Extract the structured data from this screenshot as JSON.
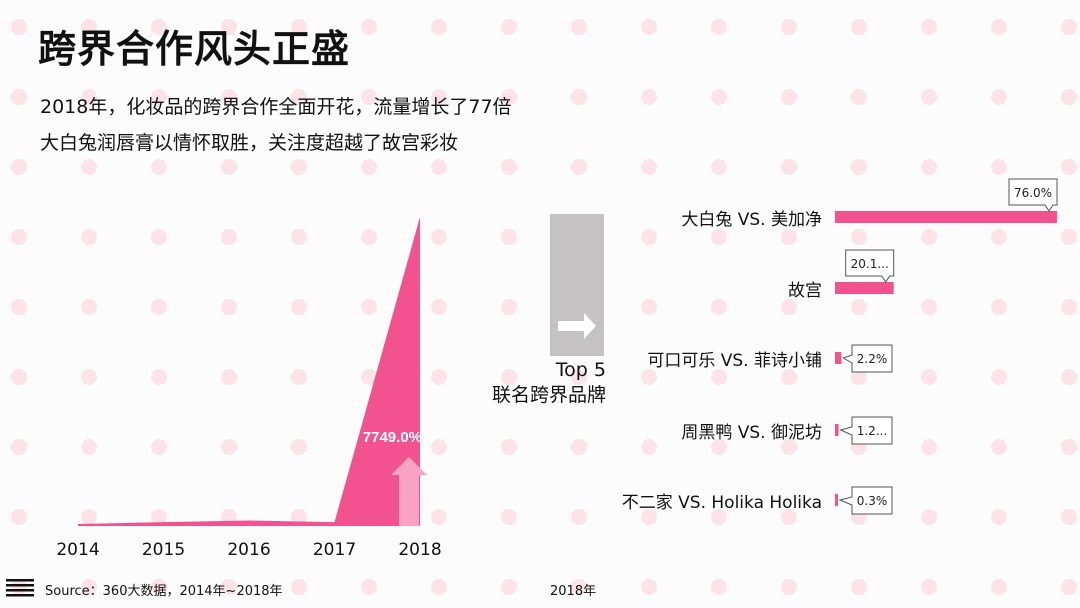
{
  "title": "跨界合作风头正盛",
  "subtitle_lines": [
    "2018年，化妆品的跨界合作全面开花，流量增长了77倍",
    "大白兔润唇膏以情怀取胜，关注度超越了故宫彩妆"
  ],
  "side_label": {
    "line1": "Top 5",
    "line2": "联名跨界品牌"
  },
  "footer": {
    "source": "Source：360大数据，2014年~2018年",
    "year": "2018年"
  },
  "colors": {
    "accent": "#f2538f",
    "arrow": "#f9a3c2",
    "dots": "#fbe3e8",
    "box": "#c4c2c3"
  },
  "icons": {
    "menu": "hamburger-icon",
    "arrow": "arrow-right-icon",
    "growth": "arrow-up-icon"
  },
  "chart_data": [
    {
      "type": "area",
      "categories": [
        "2014",
        "2015",
        "2016",
        "2017",
        "2018"
      ],
      "values": [
        0.5,
        1,
        1.4,
        1,
        79
      ],
      "annotation": "7749.0%",
      "ylim": [
        0,
        80
      ],
      "grid": false
    },
    {
      "type": "bar",
      "orientation": "horizontal",
      "categories": [
        "大白兔 VS. 美加净",
        "故宫",
        "可口可乐 VS. 菲诗小铺",
        "周黑鸭 VS. 御泥坊",
        "不二家 VS. Holika Holika"
      ],
      "values": [
        76.0,
        20.1,
        2.2,
        1.2,
        0.3
      ],
      "data_labels": [
        "76.0%",
        "20.1...",
        "2.2%",
        "1.2...",
        "0.3%"
      ],
      "grid": false
    }
  ]
}
